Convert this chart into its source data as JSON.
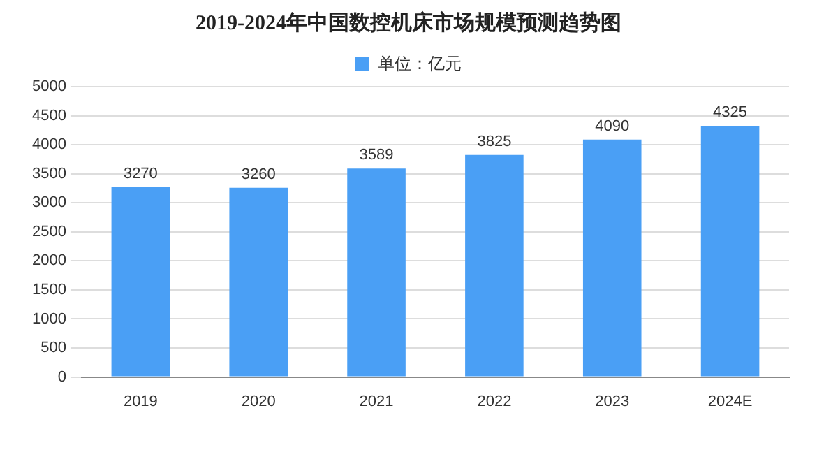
{
  "chart_data": {
    "type": "bar",
    "title": "2019-2024年中国数控机床市场规模预测趋势图",
    "categories": [
      "2019",
      "2020",
      "2021",
      "2022",
      "2023",
      "2024E"
    ],
    "series": [
      {
        "name": "单位：亿元",
        "color": "#4a9ff5",
        "values": [
          3270,
          3260,
          3589,
          3825,
          4090,
          4325
        ]
      }
    ],
    "ylim": [
      0,
      5000
    ],
    "yticks": [
      0,
      500,
      1000,
      1500,
      2000,
      2500,
      3000,
      3500,
      4000,
      4500,
      5000
    ],
    "grid": "y",
    "legend": "top",
    "data_labels": true
  }
}
